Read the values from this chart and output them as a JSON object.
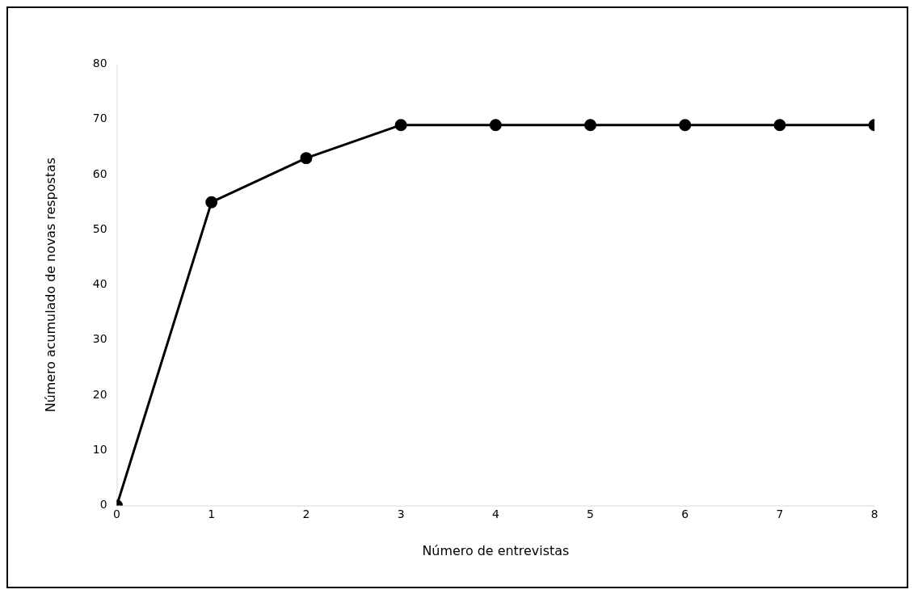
{
  "chart_data": {
    "type": "line",
    "xlabel": "Número de entrevistas",
    "ylabel": "Número acumulado de novas respostas",
    "x": [
      0,
      1,
      2,
      3,
      4,
      5,
      6,
      7,
      8
    ],
    "series": [
      {
        "color": "#000000",
        "values": [
          0,
          55,
          63,
          69,
          69,
          69,
          69,
          69,
          69
        ]
      }
    ],
    "xlim": [
      0,
      8
    ],
    "xticks": [
      0,
      1,
      2,
      3,
      4,
      5,
      6,
      7,
      8
    ],
    "ylim": [
      0,
      80
    ],
    "yticks": [
      0,
      10,
      20,
      30,
      40,
      50,
      60,
      70,
      80
    ],
    "grid": false,
    "legend": false,
    "marker": "circle",
    "line_style": "solid"
  }
}
